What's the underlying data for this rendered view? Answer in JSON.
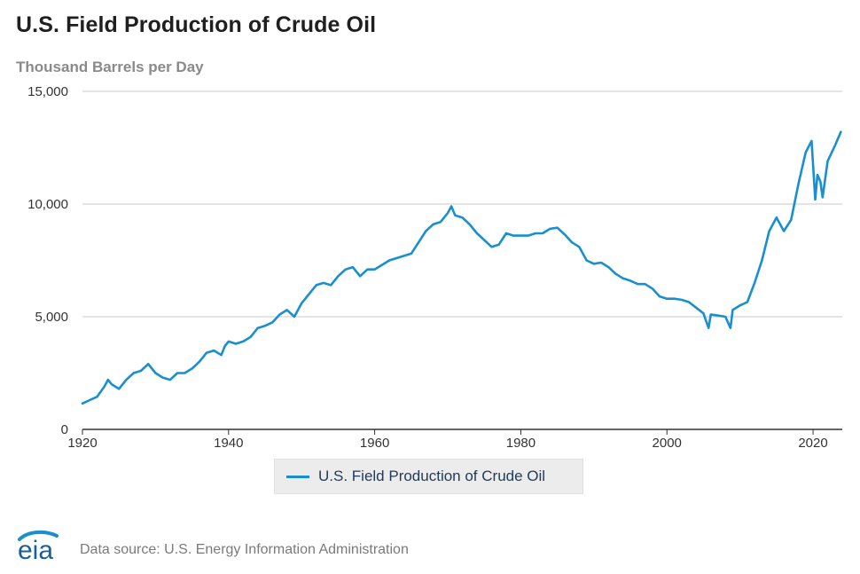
{
  "header": {
    "title": "U.S. Field Production of Crude Oil",
    "subtitle": "Thousand Barrels per Day"
  },
  "legend": {
    "label": "U.S. Field Production of Crude Oil"
  },
  "footer": {
    "logo_text": "eia",
    "source": "Data source: U.S. Energy Information Administration"
  },
  "colors": {
    "line": "#1a8fd0",
    "grid": "#c8c8c8",
    "axis": "#333333"
  },
  "chart_data": {
    "type": "line",
    "title": "U.S. Field Production of Crude Oil",
    "ylabel": "Thousand Barrels per Day",
    "xlabel": "",
    "xlim": [
      1920,
      2024
    ],
    "ylim": [
      0,
      15000
    ],
    "x_ticks": [
      "1920",
      "1940",
      "1960",
      "1980",
      "2000",
      "2020"
    ],
    "y_ticks": [
      "0",
      "5,000",
      "10,000",
      "15,000"
    ],
    "grid": true,
    "legend_position": "bottom-center",
    "series": [
      {
        "name": "U.S. Field Production of Crude Oil",
        "x": [
          1920.0,
          1921.0,
          1922.0,
          1923.0,
          1923.5,
          1924.0,
          1925.0,
          1926.0,
          1927.0,
          1928.0,
          1929.0,
          1930.0,
          1931.0,
          1932.0,
          1933.0,
          1934.0,
          1935.0,
          1936.0,
          1937.0,
          1938.0,
          1939.0,
          1939.5,
          1940.0,
          1941.0,
          1942.0,
          1943.0,
          1944.0,
          1945.0,
          1946.0,
          1947.0,
          1948.0,
          1949.0,
          1950.0,
          1951.0,
          1952.0,
          1953.0,
          1954.0,
          1955.0,
          1956.0,
          1957.0,
          1958.0,
          1959.0,
          1960.0,
          1961.0,
          1962.0,
          1963.0,
          1964.0,
          1965.0,
          1966.0,
          1967.0,
          1968.0,
          1969.0,
          1970.0,
          1970.5,
          1971.0,
          1972.0,
          1973.0,
          1974.0,
          1975.0,
          1976.0,
          1977.0,
          1978.0,
          1979.0,
          1980.0,
          1981.0,
          1982.0,
          1983.0,
          1984.0,
          1985.0,
          1986.0,
          1987.0,
          1988.0,
          1989.0,
          1990.0,
          1991.0,
          1992.0,
          1993.0,
          1994.0,
          1995.0,
          1996.0,
          1997.0,
          1998.0,
          1999.0,
          2000.0,
          2001.0,
          2002.0,
          2003.0,
          2004.0,
          2005.0,
          2005.7,
          2006.0,
          2007.0,
          2008.0,
          2008.7,
          2009.0,
          2010.0,
          2011.0,
          2012.0,
          2013.0,
          2014.0,
          2015.0,
          2016.0,
          2017.0,
          2018.0,
          2019.0,
          2019.8,
          2020.3,
          2020.6,
          2021.0,
          2021.3,
          2022.0,
          2023.0,
          2023.8
        ],
        "values": [
          1150,
          1300,
          1450,
          1900,
          2200,
          2000,
          1800,
          2200,
          2500,
          2600,
          2900,
          2500,
          2300,
          2200,
          2500,
          2500,
          2700,
          3000,
          3400,
          3500,
          3300,
          3700,
          3900,
          3800,
          3900,
          4100,
          4500,
          4600,
          4750,
          5100,
          5300,
          5000,
          5600,
          6000,
          6400,
          6500,
          6400,
          6800,
          7100,
          7200,
          6800,
          7100,
          7100,
          7300,
          7500,
          7600,
          7700,
          7800,
          8300,
          8800,
          9100,
          9200,
          9600,
          9900,
          9500,
          9400,
          9100,
          8700,
          8400,
          8100,
          8200,
          8700,
          8600,
          8600,
          8600,
          8700,
          8700,
          8900,
          8950,
          8650,
          8300,
          8100,
          7500,
          7350,
          7400,
          7200,
          6900,
          6700,
          6600,
          6450,
          6450,
          6250,
          5900,
          5800,
          5800,
          5750,
          5650,
          5400,
          5150,
          4500,
          5100,
          5050,
          5000,
          4500,
          5300,
          5500,
          5650,
          6500,
          7500,
          8800,
          9400,
          8800,
          9300,
          10900,
          12300,
          12800,
          10200,
          11300,
          11000,
          10300,
          11900,
          12600,
          13200
        ]
      }
    ]
  }
}
